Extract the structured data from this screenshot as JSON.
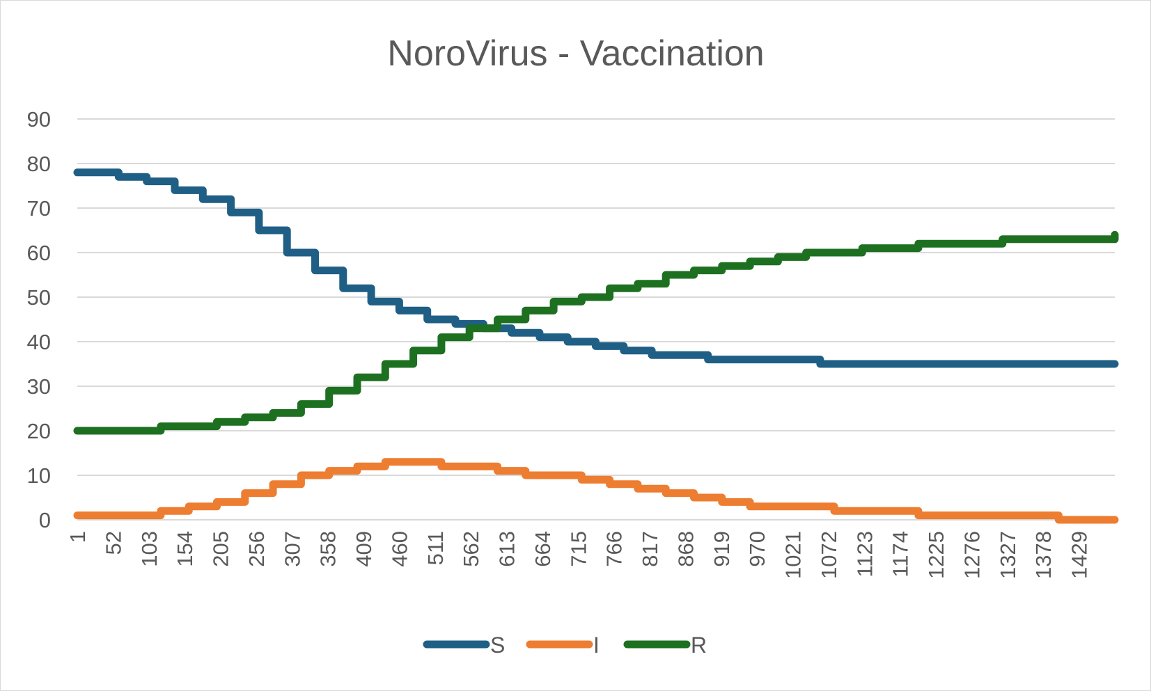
{
  "chart_data": {
    "type": "line",
    "title": "NoroVirus - Vaccination",
    "xlabel": "",
    "ylabel": "",
    "ylim": [
      0,
      90
    ],
    "yticks": [
      0,
      10,
      20,
      30,
      40,
      50,
      60,
      70,
      80,
      90
    ],
    "xlim": [
      1,
      1480
    ],
    "categories": [
      "1",
      "52",
      "103",
      "154",
      "205",
      "256",
      "307",
      "358",
      "409",
      "460",
      "511",
      "562",
      "613",
      "664",
      "715",
      "766",
      "817",
      "868",
      "919",
      "970",
      "1021",
      "1072",
      "1123",
      "1174",
      "1225",
      "1276",
      "1327",
      "1378",
      "1429"
    ],
    "grid": true,
    "legend_position": "bottom",
    "series": [
      {
        "name": "S",
        "color": "#1f5f85",
        "x": [
          1,
          30,
          60,
          100,
          140,
          180,
          220,
          260,
          300,
          340,
          380,
          420,
          460,
          500,
          540,
          580,
          620,
          660,
          700,
          740,
          780,
          820,
          860,
          900,
          940,
          980,
          1020,
          1060,
          1100,
          1140,
          1180,
          1220,
          1260,
          1300,
          1340,
          1380,
          1420,
          1480
        ],
        "values": [
          78,
          78,
          77,
          76,
          74,
          72,
          69,
          65,
          60,
          56,
          52,
          49,
          47,
          45,
          44,
          43,
          42,
          41,
          40,
          39,
          38,
          37,
          37,
          36,
          36,
          36,
          36,
          35,
          35,
          35,
          35,
          35,
          35,
          35,
          35,
          35,
          35,
          35
        ]
      },
      {
        "name": "I",
        "color": "#ed7d31",
        "x": [
          1,
          40,
          80,
          120,
          160,
          200,
          240,
          280,
          320,
          360,
          400,
          440,
          480,
          520,
          560,
          600,
          640,
          680,
          720,
          760,
          800,
          840,
          880,
          920,
          960,
          1000,
          1040,
          1080,
          1120,
          1160,
          1200,
          1240,
          1280,
          1320,
          1360,
          1400,
          1440,
          1480
        ],
        "values": [
          1,
          1,
          1,
          2,
          3,
          4,
          6,
          8,
          10,
          11,
          12,
          13,
          13,
          12,
          12,
          11,
          10,
          10,
          9,
          8,
          7,
          6,
          5,
          4,
          3,
          3,
          3,
          2,
          2,
          2,
          1,
          1,
          1,
          1,
          1,
          0,
          0,
          0
        ]
      },
      {
        "name": "R",
        "color": "#1e7021",
        "x": [
          1,
          40,
          80,
          120,
          160,
          200,
          240,
          280,
          320,
          360,
          400,
          440,
          480,
          520,
          560,
          600,
          640,
          680,
          720,
          760,
          800,
          840,
          880,
          920,
          960,
          1000,
          1040,
          1080,
          1120,
          1160,
          1200,
          1240,
          1280,
          1320,
          1360,
          1400,
          1440,
          1480
        ],
        "values": [
          20,
          20,
          20,
          21,
          21,
          22,
          23,
          24,
          26,
          29,
          32,
          35,
          38,
          41,
          43,
          45,
          47,
          49,
          50,
          52,
          53,
          55,
          56,
          57,
          58,
          59,
          60,
          60,
          61,
          61,
          62,
          62,
          62,
          63,
          63,
          63,
          63,
          64
        ]
      }
    ]
  }
}
